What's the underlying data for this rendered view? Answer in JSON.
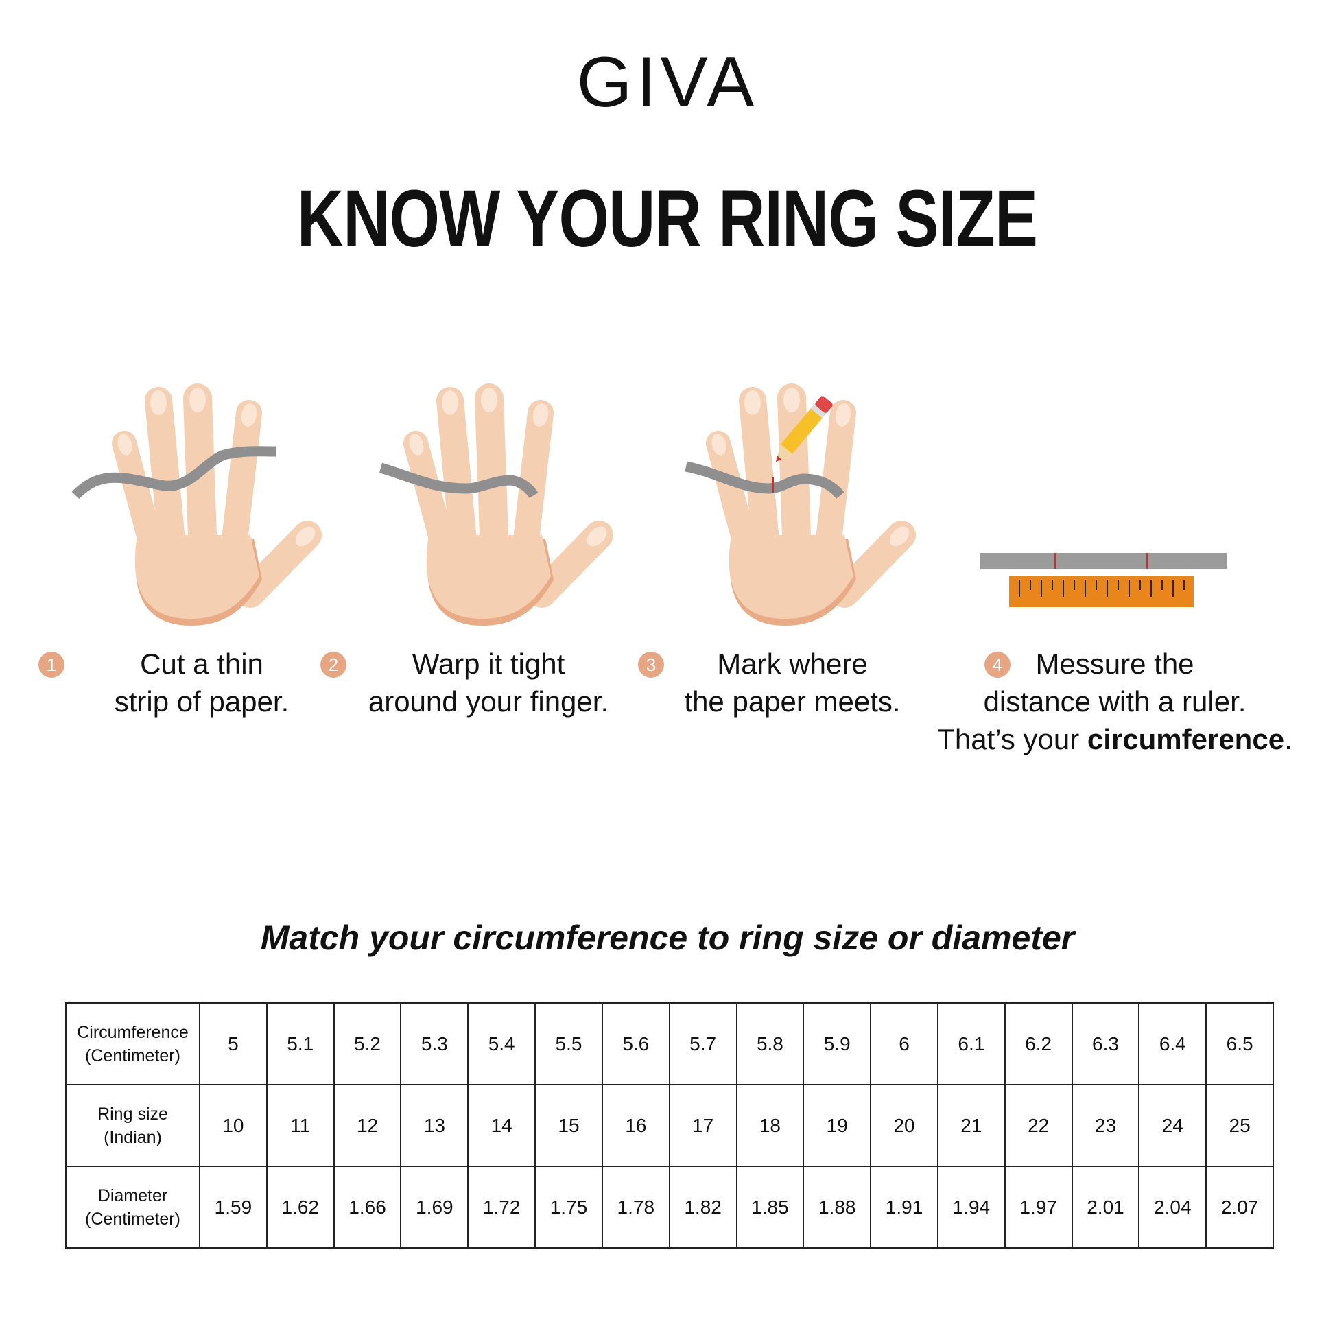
{
  "brand": {
    "logo": "GIVA"
  },
  "title": "KNOW YOUR RING SIZE",
  "colors": {
    "skin": "#f5cfb2",
    "skin_shadow": "#e8ab86",
    "nail": "#fbe6d6",
    "paper_strip": "#8f8f8f",
    "ruler": "#e8861c",
    "step_badge": "#e6a684",
    "mark": "#d8282b"
  },
  "steps": [
    {
      "number": "1",
      "line1": "Cut a thin",
      "line2": "strip of paper.",
      "icon": "hand-with-paper-strip-icon"
    },
    {
      "number": "2",
      "line1": "Warp it tight",
      "line2": "around your finger.",
      "icon": "hand-paper-wrapped-finger-icon"
    },
    {
      "number": "3",
      "line1": "Mark where",
      "line2": "the paper meets.",
      "icon": "hand-pencil-mark-icon"
    },
    {
      "number": "4",
      "line1": "Messure the",
      "line2": "distance with a ruler.",
      "line3_prefix": "That’s your ",
      "line3_bold": "circumference",
      "line3_suffix": ".",
      "icon": "ruler-icon"
    }
  ],
  "table": {
    "heading": "Match your circumference to ring size or diameter",
    "rows": [
      {
        "label1": "Circumference",
        "label2": "(Centimeter)",
        "values": [
          "5",
          "5.1",
          "5.2",
          "5.3",
          "5.4",
          "5.5",
          "5.6",
          "5.7",
          "5.8",
          "5.9",
          "6",
          "6.1",
          "6.2",
          "6.3",
          "6.4",
          "6.5"
        ]
      },
      {
        "label1": "Ring size",
        "label2": "(Indian)",
        "values": [
          "10",
          "11",
          "12",
          "13",
          "14",
          "15",
          "16",
          "17",
          "18",
          "19",
          "20",
          "21",
          "22",
          "23",
          "24",
          "25"
        ]
      },
      {
        "label1": "Diameter",
        "label2": "(Centimeter)",
        "values": [
          "1.59",
          "1.62",
          "1.66",
          "1.69",
          "1.72",
          "1.75",
          "1.78",
          "1.82",
          "1.85",
          "1.88",
          "1.91",
          "1.94",
          "1.97",
          "2.01",
          "2.04",
          "2.07"
        ]
      }
    ]
  }
}
